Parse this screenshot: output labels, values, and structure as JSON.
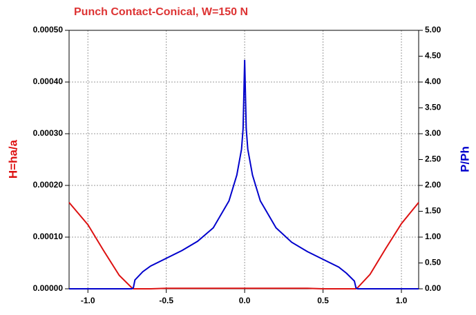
{
  "chart_data": {
    "type": "line",
    "title": "Punch Contact-Conical, W=150 N",
    "y_label": "H=ha/a",
    "y2_label": "P/Ph",
    "x": [
      -1.12,
      -1.0,
      -0.9,
      -0.8,
      -0.72,
      -0.71,
      -0.7,
      -0.65,
      -0.6,
      -0.5,
      -0.4,
      -0.3,
      -0.2,
      -0.1,
      -0.05,
      -0.02,
      -0.01,
      0,
      0.01,
      0.02,
      0.05,
      0.1,
      0.2,
      0.3,
      0.4,
      0.5,
      0.6,
      0.65,
      0.7,
      0.71,
      0.72,
      0.8,
      0.9,
      1.0,
      1.11
    ],
    "series": [
      {
        "name": "H=ha/a",
        "color": "#dd1111",
        "axis": "y",
        "values": [
          0.000167,
          0.000124,
          7.4e-05,
          2.6e-05,
          2e-06,
          0,
          0,
          0,
          0,
          1e-06,
          1e-06,
          1e-06,
          1e-06,
          1e-06,
          1e-06,
          1e-06,
          1e-06,
          1e-06,
          1e-06,
          1e-06,
          1e-06,
          1e-06,
          1e-06,
          1e-06,
          1e-06,
          0,
          0,
          0,
          0,
          0,
          2e-06,
          2.8e-05,
          7.8e-05,
          0.000126,
          0.000167
        ]
      },
      {
        "name": "P/Ph",
        "color": "#0000cc",
        "axis": "y2",
        "values": [
          0,
          0,
          0,
          0,
          0,
          0.02,
          0.17,
          0.33,
          0.44,
          0.59,
          0.74,
          0.92,
          1.18,
          1.7,
          2.2,
          2.7,
          3.1,
          4.43,
          3.1,
          2.7,
          2.2,
          1.7,
          1.18,
          0.9,
          0.72,
          0.57,
          0.42,
          0.3,
          0.15,
          0.02,
          0,
          0,
          0,
          0,
          0
        ]
      }
    ],
    "xlim": [
      -1.12,
      1.11
    ],
    "xticks": [
      {
        "value": -1.0,
        "label": "-1.0"
      },
      {
        "value": -0.5,
        "label": "-0.5"
      },
      {
        "value": 0,
        "label": "0.0"
      },
      {
        "value": 0.5,
        "label": "0.5"
      },
      {
        "value": 1.0,
        "label": "1.0"
      }
    ],
    "ylim": [
      0,
      0.0005
    ],
    "yticks": [
      {
        "value": 0,
        "label": "0.00000"
      },
      {
        "value": 0.0001,
        "label": "0.00010"
      },
      {
        "value": 0.0002,
        "label": "0.00020"
      },
      {
        "value": 0.0003,
        "label": "0.00030"
      },
      {
        "value": 0.0004,
        "label": "0.00040"
      },
      {
        "value": 0.0005,
        "label": "0.00050"
      }
    ],
    "y2lim": [
      0,
      5
    ],
    "y2ticks": [
      {
        "value": 0,
        "label": "0.00"
      },
      {
        "value": 0.5,
        "label": "0.50"
      },
      {
        "value": 1,
        "label": "1.00"
      },
      {
        "value": 1.5,
        "label": "1.50"
      },
      {
        "value": 2,
        "label": "2.00"
      },
      {
        "value": 2.5,
        "label": "2.50"
      },
      {
        "value": 3,
        "label": "3.00"
      },
      {
        "value": 3.5,
        "label": "3.50"
      },
      {
        "value": 4,
        "label": "4.00"
      },
      {
        "value": 4.5,
        "label": "4.50"
      },
      {
        "value": 5,
        "label": "5.00"
      }
    ],
    "grid": true
  }
}
